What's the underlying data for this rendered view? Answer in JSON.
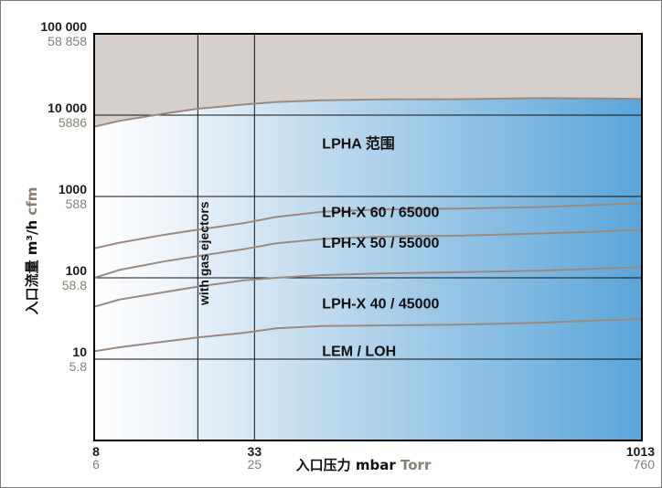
{
  "chart_data": {
    "type": "line",
    "x_scale": "log",
    "y_scale": "log",
    "xlim": [
      8,
      1013
    ],
    "ylim": [
      1,
      100000
    ],
    "grid": true,
    "xlabel": "入口压力 mbar",
    "xlabel_alt": "Torr",
    "ylabel": "入口流量 m³/h",
    "ylabel_alt": "cfm",
    "x_ticks": [
      {
        "value": 8,
        "label": "8",
        "alt": "6"
      },
      {
        "value": 33,
        "label": "33",
        "alt": "25"
      },
      {
        "value": 1013,
        "label": "1013",
        "alt": "760"
      }
    ],
    "y_ticks": [
      {
        "value": 10,
        "label": "10",
        "alt": "5.8"
      },
      {
        "value": 100,
        "label": "100",
        "alt": "58.8"
      },
      {
        "value": 1000,
        "label": "1000",
        "alt": "588"
      },
      {
        "value": 10000,
        "label": "10 000",
        "alt": "5886"
      },
      {
        "value": 100000,
        "label": "100 000",
        "alt": "58 858"
      }
    ],
    "x": [
      8,
      10,
      15,
      20,
      30,
      40,
      60,
      100,
      200,
      400,
      700,
      1013
    ],
    "series": [
      {
        "name": "LPHA 范围",
        "values": [
          7200,
          8500,
          10500,
          12000,
          13500,
          14500,
          15200,
          15600,
          15700,
          16200,
          16000,
          15800
        ],
        "label_pos": [
          60,
          3900
        ],
        "color": "#9a8a80"
      },
      {
        "name": "LPH-X 60 / 65000",
        "values": [
          230,
          270,
          340,
          390,
          470,
          560,
          650,
          690,
          710,
          740,
          790,
          830
        ],
        "label_pos": [
          60,
          560
        ],
        "color": "#9a8a80"
      },
      {
        "name": "LPH-X 50 / 55000",
        "values": [
          100,
          125,
          160,
          185,
          225,
          265,
          300,
          320,
          330,
          350,
          370,
          390
        ],
        "label_pos": [
          60,
          235
        ],
        "color": "#9a8a80"
      },
      {
        "name": "LPH-X 40 / 45000",
        "values": [
          44,
          54,
          67,
          78,
          93,
          100,
          108,
          113,
          117,
          122,
          130,
          135
        ],
        "label_pos": [
          60,
          42
        ],
        "color": "#9a8a80"
      },
      {
        "name": "LEM / LOH",
        "values": [
          12.5,
          14,
          16.5,
          18.5,
          21,
          24,
          25.5,
          26,
          26.5,
          28,
          30,
          31
        ],
        "label_pos": [
          60,
          11
        ],
        "color": "#9a8a80"
      }
    ],
    "annotations": [
      {
        "text": "with gas ejectors",
        "x": 22,
        "y": 200,
        "rotation": -90
      }
    ],
    "vlines": [
      20,
      33
    ],
    "colors": {
      "above_region": "#d5d0cb",
      "region_start": "#ffffff",
      "region_end": "#5ba5d8",
      "curve": "#9a8a80",
      "axis": "#000000"
    }
  }
}
